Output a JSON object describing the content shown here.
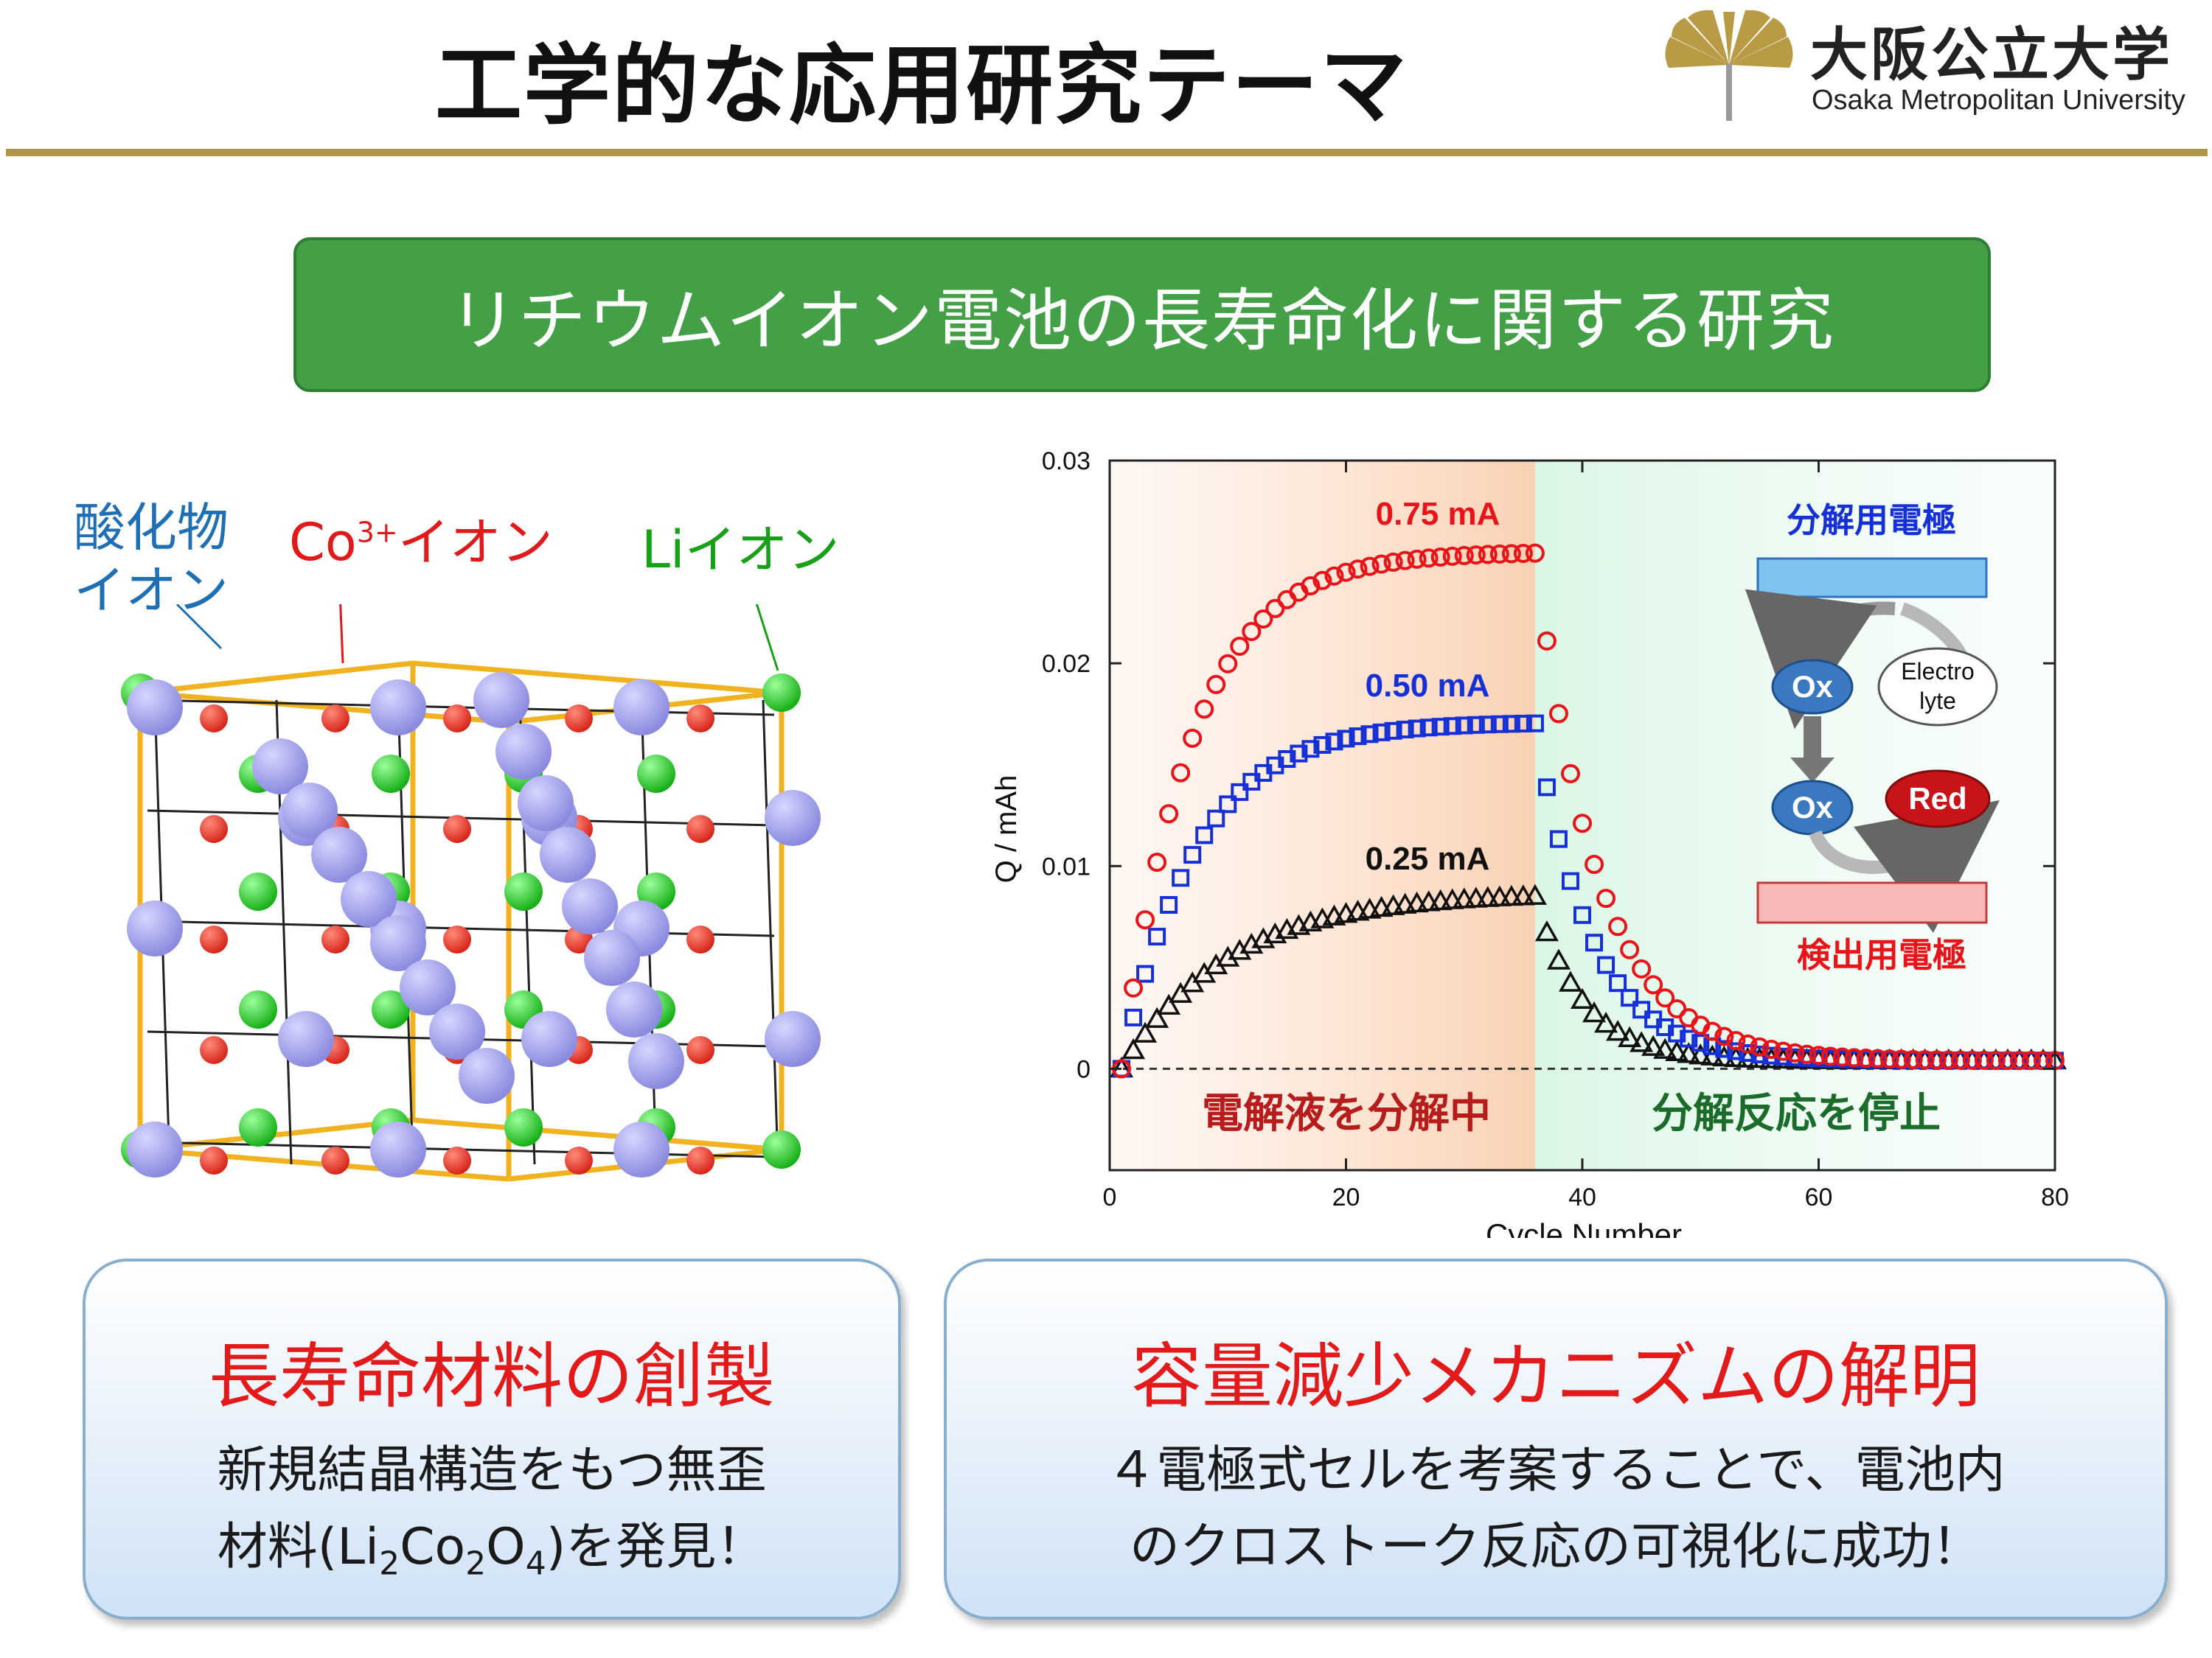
{
  "header": {
    "title": "工学的な応用研究テーマ",
    "logo_name": "大阪公立大学",
    "logo_sub": "Osaka Metropolitan University"
  },
  "banner": {
    "text": "リチウムイオン電池の長寿命化に関する研究"
  },
  "crystal": {
    "label_oxide_1": "酸化物",
    "label_oxide_2": "イオン",
    "label_co_base": "Co",
    "label_co_sup": "3+",
    "label_co_rest": "イオン",
    "label_li": "Liイオン"
  },
  "left_box": {
    "heading": "長寿命材料の創製",
    "line1": "新規結晶構造をもつ無歪",
    "line2_pre": "材料(Li",
    "sub1": "2",
    "mid1": "Co",
    "sub2": "2",
    "mid2": "O",
    "sub3": "4",
    "line2_post": ")を発見！"
  },
  "right_box": {
    "heading": "容量減少メカニズムの解明",
    "line1": "４電極式セルを考案することで、電池内",
    "line2": "のクロストーク反応の可視化に成功！"
  },
  "chart_data": {
    "type": "scatter",
    "xlabel": "Cycle Number",
    "ylabel": "Q / mAh",
    "xlim": [
      0,
      80
    ],
    "ylim": [
      -0.005,
      0.03
    ],
    "x_ticks": [
      "0",
      "20",
      "40",
      "60",
      "80"
    ],
    "y_ticks": [
      "0",
      "0.01",
      "0.02",
      "0.03"
    ],
    "region_left_label": "電解液を分解中",
    "region_right_label": "分解反応を停止",
    "region_boundary_x": 36,
    "inset": {
      "top_electrode": "分解用電極",
      "bottom_electrode": "検出用電極",
      "ox1": "Ox",
      "ox2": "Ox",
      "electrolyte_1": "Electro",
      "electrolyte_2": "lyte",
      "red": "Red"
    },
    "series": [
      {
        "name": "0.75 mA",
        "marker": "circle",
        "color": "#e8141a",
        "plateau": 0.0255,
        "k": 0.17,
        "decay": 0.19
      },
      {
        "name": "0.50 mA",
        "marker": "square",
        "color": "#1430d6",
        "plateau": 0.0171,
        "k": 0.16,
        "decay": 0.21
      },
      {
        "name": "0.25 mA",
        "marker": "triangle",
        "color": "#111111",
        "plateau": 0.0087,
        "k": 0.11,
        "decay": 0.25
      }
    ]
  }
}
